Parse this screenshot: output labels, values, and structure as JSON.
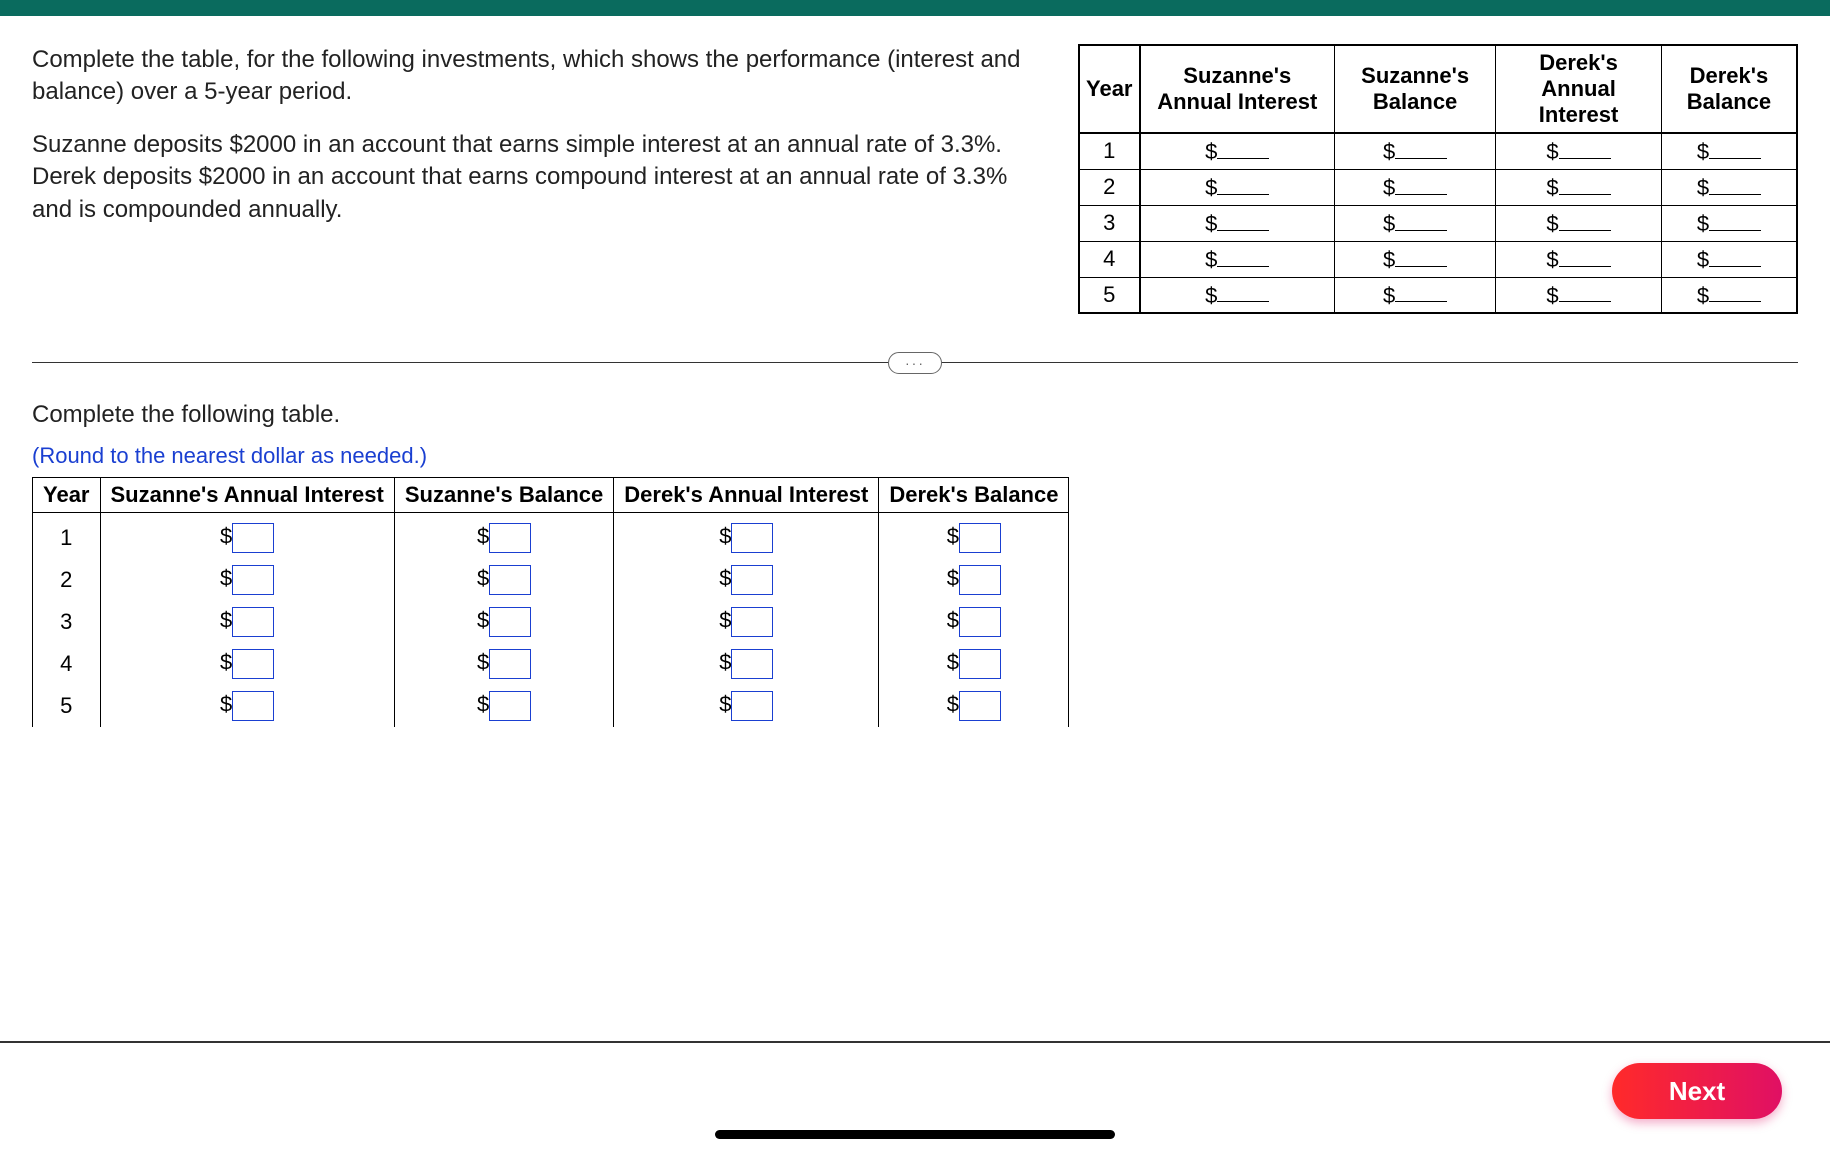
{
  "colors": {
    "topbar": "#0a6b5e",
    "hint_text": "#1a3fd1",
    "input_border": "#1a3fd1",
    "next_gradient_start": "#ff2a2a",
    "next_gradient_end": "#e01064",
    "text": "#222222",
    "border": "#000000"
  },
  "question": {
    "p1": "Complete the table, for the following investments, which shows the performance (interest and balance) over a 5-year period.",
    "p2": "Suzanne deposits $2000 in an account that earns simple interest at an annual rate of 3.3%. Derek deposits $2000 in an account that earns compound interest at an annual rate of 3.3% and is compounded annually."
  },
  "reference_table": {
    "headers": [
      "Year",
      "Suzanne's Annual Interest",
      "Suzanne's Balance",
      "Derek's Annual Interest",
      "Derek's Balance"
    ],
    "years": [
      "1",
      "2",
      "3",
      "4",
      "5"
    ],
    "cell_placeholder_prefix": "$"
  },
  "divider_label": "···",
  "instruction": "Complete the following table.",
  "hint": "(Round to the nearest dollar as needed.)",
  "answer_table": {
    "headers": [
      "Year",
      "Suzanne's Annual Interest",
      "Suzanne's Balance",
      "Derek's Annual Interest",
      "Derek's Balance"
    ],
    "years": [
      "1",
      "2",
      "3",
      "4",
      "5"
    ],
    "currency_symbol": "$"
  },
  "next_button_label": "Next"
}
